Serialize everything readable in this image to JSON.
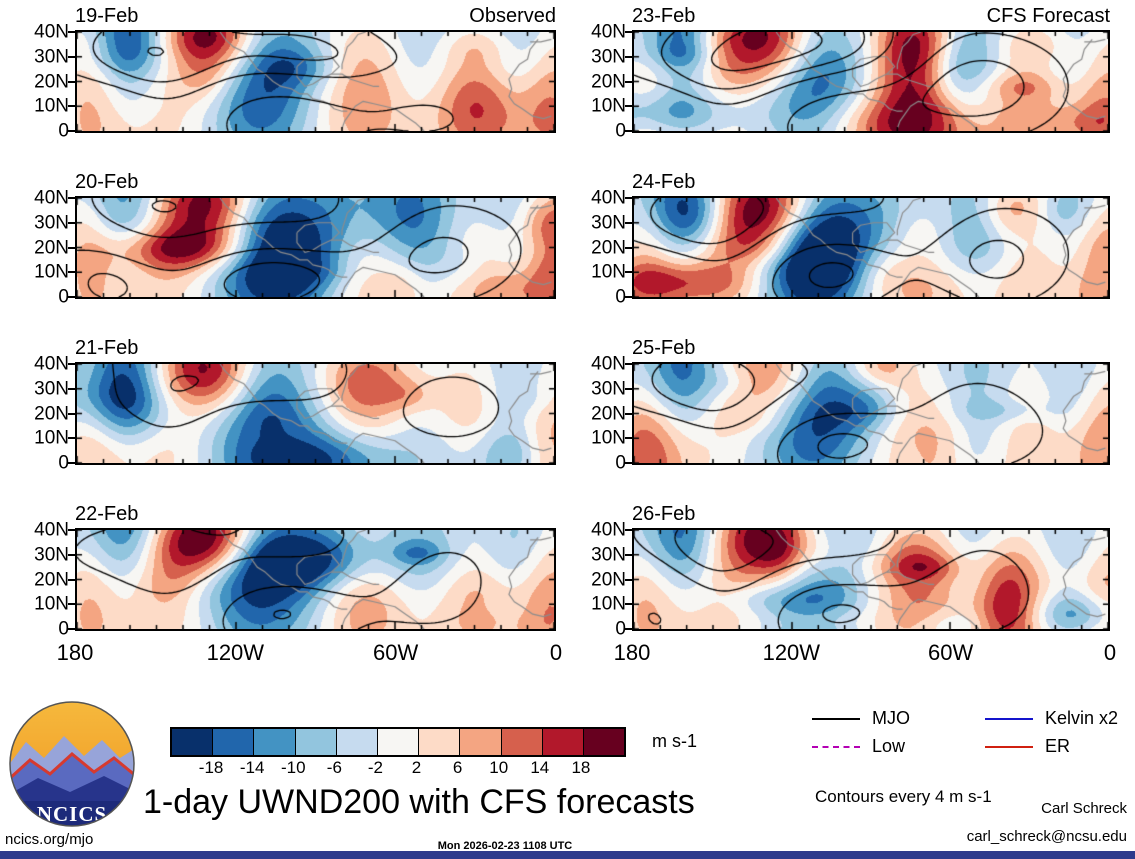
{
  "title": "1-day UWND200 with CFS forecasts",
  "columns": [
    {
      "header": "Observed",
      "dates": [
        "19-Feb",
        "20-Feb",
        "21-Feb",
        "22-Feb"
      ]
    },
    {
      "header": "CFS Forecast",
      "dates": [
        "23-Feb",
        "24-Feb",
        "25-Feb",
        "26-Feb"
      ]
    }
  ],
  "axes": {
    "y_tick_labels": [
      "40N",
      "30N",
      "20N",
      "10N",
      "0"
    ],
    "x_tick_labels": [
      "180",
      "120W",
      "60W",
      "0"
    ]
  },
  "colorbar": {
    "units": "m s-1",
    "tick_labels": [
      "-18",
      "-14",
      "-10",
      "-6",
      "-2",
      "2",
      "6",
      "10",
      "14",
      "18"
    ],
    "colors": [
      "#08306b",
      "#2166ac",
      "#4393c3",
      "#92c5de",
      "#c6dbef",
      "#f7f6f3",
      "#fddbc7",
      "#f4a582",
      "#d6604d",
      "#b2182b",
      "#67001f"
    ]
  },
  "legend": {
    "items": [
      {
        "label": "MJO",
        "color": "#000000",
        "style": "solid"
      },
      {
        "label": "Kelvin x2",
        "color": "#1414cc",
        "style": "solid"
      },
      {
        "label": "Low",
        "color": "#b400b4",
        "style": "dashed"
      },
      {
        "label": "ER",
        "color": "#d02010",
        "style": "solid"
      }
    ],
    "note": "Contours every 4 m s-1"
  },
  "footer": {
    "site": "ncics.org/mjo",
    "timestamp": "Mon 2026-02-23 1108 UTC",
    "credit_name": "Carl Schreck",
    "credit_email": "carl_schreck@ncsu.edu",
    "logo_text": "NCICS"
  },
  "chart_data": {
    "type": "heatmap",
    "title": "1-day UWND200 with CFS forecasts",
    "description": "Eight filled-contour longitude/latitude maps of 200-hPa zonal wind anomalies (UWND200) over 0-40N, 180-0 (western hemisphere). Left column shows observed fields for 19-22 Feb; right column shows CFS forecast fields for 23-26 Feb. Shading gives wind anomaly in m s-1 (blue negative/easterly, red positive/westerly); overlaid black contours every 4 m s-1 (dashed negative) show wave-filtered anomalies per the legend (MJO, Kelvin x2, Low, ER). Grey lines are coastlines of North/Central/South America and west Africa.",
    "panels": [
      {
        "date": "19-Feb",
        "source": "Observed"
      },
      {
        "date": "20-Feb",
        "source": "Observed"
      },
      {
        "date": "21-Feb",
        "source": "Observed"
      },
      {
        "date": "22-Feb",
        "source": "Observed"
      },
      {
        "date": "23-Feb",
        "source": "CFS Forecast"
      },
      {
        "date": "24-Feb",
        "source": "CFS Forecast"
      },
      {
        "date": "25-Feb",
        "source": "CFS Forecast"
      },
      {
        "date": "26-Feb",
        "source": "CFS Forecast"
      }
    ],
    "x_axis": {
      "label": "longitude",
      "ticks": [
        "180",
        "120W",
        "60W",
        "0"
      ],
      "range_deg_west": [
        180,
        0
      ]
    },
    "y_axis": {
      "label": "latitude",
      "ticks": [
        "0",
        "10N",
        "20N",
        "30N",
        "40N"
      ],
      "range_deg_north": [
        0,
        40
      ]
    },
    "fill_levels_m_s": [
      -18,
      -14,
      -10,
      -6,
      -2,
      2,
      6,
      10,
      14,
      18
    ],
    "contour_interval_m_s": 4,
    "units": "m s-1",
    "notable_features": "Strong negative (blue) anomaly centers near 150-170W at 25-40N and mid-basin near 100-120W; positive (red) bands along 30-40N near 120-140W and over the eastern Pacific/Atlantic subtropics; dashed wave contours concentrated along 25-40N in the west, solid contours over the central/eastern tropics."
  }
}
